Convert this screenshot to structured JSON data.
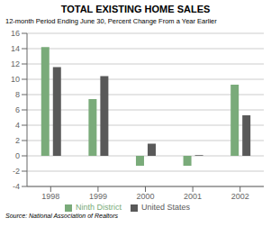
{
  "chart_data": {
    "type": "bar",
    "title": "TOTAL EXISTING HOME SALES",
    "subtitle": "12-month Period Ending June 30, Percent Change From a Year Earlier",
    "annotations": [
      "Source: National Association of Realtors"
    ],
    "categories": [
      "1998",
      "1999",
      "2000",
      "2001",
      "2002"
    ],
    "series": [
      {
        "name": "Ninth District",
        "color": "#7aab7a",
        "values": [
          14.2,
          7.4,
          -1.3,
          -1.3,
          9.3
        ]
      },
      {
        "name": "United States",
        "color": "#595959",
        "values": [
          11.6,
          10.4,
          1.6,
          0.1,
          5.3
        ]
      }
    ],
    "ylim": [
      -4,
      16
    ],
    "yticks": [
      -4,
      -2,
      0,
      2,
      4,
      6,
      8,
      10,
      12,
      14,
      16
    ],
    "grid": true,
    "legend": "bottom"
  }
}
